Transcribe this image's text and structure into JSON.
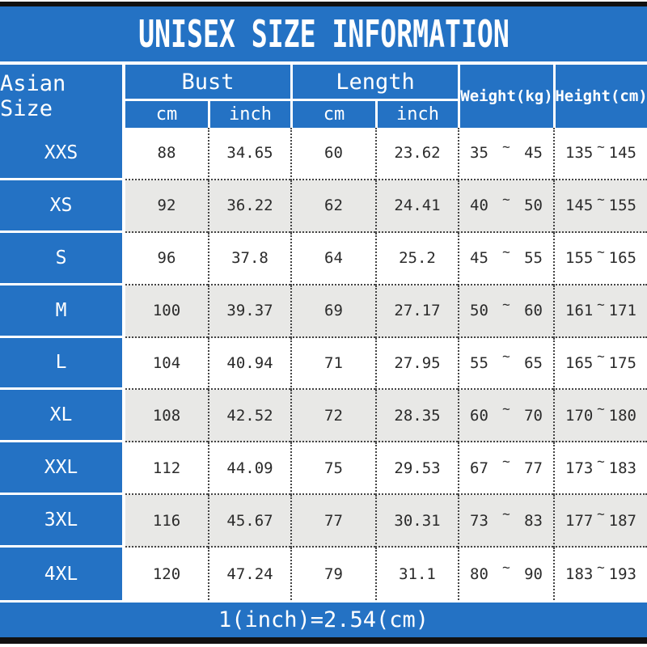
{
  "title": "UNISEX SIZE INFORMATION",
  "footer_note": "1(inch)=2.54(cm)",
  "colors": {
    "blue": "#2472c4",
    "stripe": "#e8e8e6",
    "dot": "#444444",
    "bar": "#111111",
    "txt": "#2b2b2b"
  },
  "labels": {
    "asian_size": "Asian Size",
    "bust": "Bust",
    "length": "Length",
    "cm": "cm",
    "inch": "inch",
    "weight": "Weight(kg)",
    "height": "Height(cm)",
    "tilde": "~"
  },
  "chart_data": {
    "type": "table",
    "title": "UNISEX SIZE INFORMATION",
    "columns": [
      "Asian Size",
      "Bust cm",
      "Bust inch",
      "Length cm",
      "Length inch",
      "Weight(kg)",
      "Height(cm)"
    ],
    "rows": [
      {
        "size": "XXS",
        "bust_cm": "88",
        "bust_inch": "34.65",
        "length_cm": "60",
        "length_inch": "23.62",
        "weight_min": "35",
        "weight_max": "45",
        "height_min": "135",
        "height_max": "145"
      },
      {
        "size": "XS",
        "bust_cm": "92",
        "bust_inch": "36.22",
        "length_cm": "62",
        "length_inch": "24.41",
        "weight_min": "40",
        "weight_max": "50",
        "height_min": "145",
        "height_max": "155"
      },
      {
        "size": "S",
        "bust_cm": "96",
        "bust_inch": "37.8",
        "length_cm": "64",
        "length_inch": "25.2",
        "weight_min": "45",
        "weight_max": "55",
        "height_min": "155",
        "height_max": "165"
      },
      {
        "size": "M",
        "bust_cm": "100",
        "bust_inch": "39.37",
        "length_cm": "69",
        "length_inch": "27.17",
        "weight_min": "50",
        "weight_max": "60",
        "height_min": "161",
        "height_max": "171"
      },
      {
        "size": "L",
        "bust_cm": "104",
        "bust_inch": "40.94",
        "length_cm": "71",
        "length_inch": "27.95",
        "weight_min": "55",
        "weight_max": "65",
        "height_min": "165",
        "height_max": "175"
      },
      {
        "size": "XL",
        "bust_cm": "108",
        "bust_inch": "42.52",
        "length_cm": "72",
        "length_inch": "28.35",
        "weight_min": "60",
        "weight_max": "70",
        "height_min": "170",
        "height_max": "180"
      },
      {
        "size": "XXL",
        "bust_cm": "112",
        "bust_inch": "44.09",
        "length_cm": "75",
        "length_inch": "29.53",
        "weight_min": "67",
        "weight_max": "77",
        "height_min": "173",
        "height_max": "183"
      },
      {
        "size": "3XL",
        "bust_cm": "116",
        "bust_inch": "45.67",
        "length_cm": "77",
        "length_inch": "30.31",
        "weight_min": "73",
        "weight_max": "83",
        "height_min": "177",
        "height_max": "187"
      },
      {
        "size": "4XL",
        "bust_cm": "120",
        "bust_inch": "47.24",
        "length_cm": "79",
        "length_inch": "31.1",
        "weight_min": "80",
        "weight_max": "90",
        "height_min": "183",
        "height_max": "193"
      }
    ],
    "footnote": "1(inch)=2.54(cm)"
  }
}
